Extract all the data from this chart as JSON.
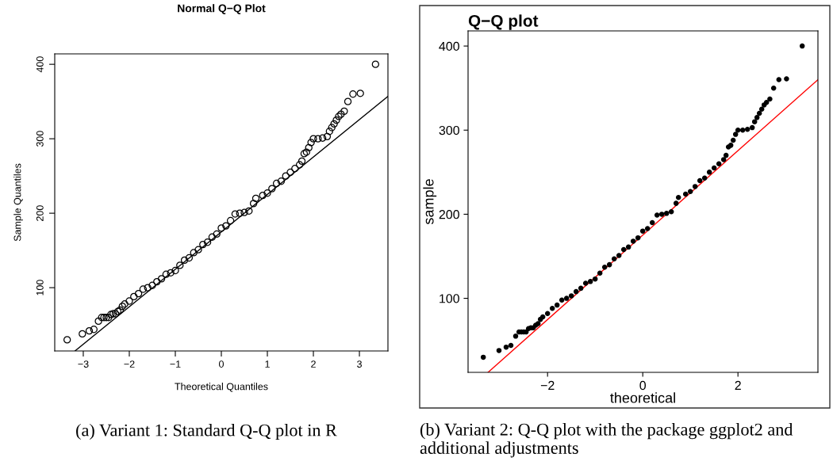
{
  "chart_data": [
    {
      "type": "scatter",
      "title": "Normal Q−Q Plot",
      "xlabel": "Theoretical Quantiles",
      "ylabel": "Sample Quantiles",
      "xlim": [
        -3.62,
        3.62
      ],
      "ylim": [
        15,
        414
      ],
      "xticks": [
        {
          "value": -3,
          "label": "−3"
        },
        {
          "value": -2,
          "label": "−2"
        },
        {
          "value": -1,
          "label": "−1"
        },
        0,
        1,
        2,
        3
      ],
      "yticks": [
        100,
        200,
        300,
        400
      ],
      "grid": false,
      "legend": false,
      "annotations": [
        "(a) Variant 1: Standard Q-Q plot in R"
      ],
      "series": [
        {
          "marker": "circle",
          "color": "#000000",
          "x": [
            -3.35,
            -3.02,
            -2.87,
            -2.77,
            -2.67,
            -2.6,
            -2.55,
            -2.5,
            -2.45,
            -2.4,
            -2.35,
            -2.3,
            -2.25,
            -2.2,
            -2.15,
            -2.1,
            -2.0,
            -1.9,
            -1.8,
            -1.7,
            -1.6,
            -1.5,
            -1.4,
            -1.3,
            -1.2,
            -1.1,
            -1.0,
            -0.9,
            -0.8,
            -0.7,
            -0.6,
            -0.5,
            -0.4,
            -0.3,
            -0.2,
            -0.1,
            0.0,
            0.1,
            0.2,
            0.3,
            0.4,
            0.5,
            0.6,
            0.7,
            0.75,
            0.9,
            1.0,
            1.1,
            1.2,
            1.3,
            1.4,
            1.5,
            1.6,
            1.7,
            1.75,
            1.8,
            1.85,
            1.9,
            1.95,
            2.0,
            2.1,
            2.2,
            2.3,
            2.35,
            2.4,
            2.45,
            2.5,
            2.55,
            2.6,
            2.67,
            2.75,
            2.86,
            3.02,
            3.35
          ],
          "values": [
            30,
            38,
            42,
            44,
            55,
            60,
            60,
            60,
            60,
            64,
            65,
            65,
            68,
            70,
            75,
            78,
            82,
            88,
            92,
            98,
            100,
            103,
            108,
            112,
            118,
            120,
            123,
            130,
            137,
            140,
            147,
            151,
            158,
            161,
            168,
            172,
            180,
            183,
            190,
            199,
            200,
            201,
            203,
            213,
            220,
            224,
            227,
            233,
            240,
            243,
            250,
            255,
            260,
            265,
            270,
            280,
            282,
            288,
            295,
            300,
            300,
            301,
            303,
            310,
            315,
            320,
            325,
            330,
            333,
            337,
            350,
            360,
            361,
            400
          ]
        },
        {
          "type": "line",
          "color": "#000000",
          "x": [
            -3.18,
            3.62
          ],
          "values": [
            15,
            357
          ]
        }
      ]
    },
    {
      "type": "scatter",
      "title": "Q−Q plot",
      "xlabel": "theoretical",
      "ylabel": "sample",
      "xlim": [
        -3.67,
        3.68
      ],
      "ylim": [
        12,
        418
      ],
      "xticks": [
        {
          "value": -2,
          "label": "−2"
        },
        0,
        2
      ],
      "yticks": [
        100,
        200,
        300,
        400
      ],
      "grid": false,
      "legend": false,
      "annotations": [
        "(b) Variant 2: Q-Q plot with the package ggplot2 and additional adjustments"
      ],
      "series": [
        {
          "marker": "circle",
          "color": "#000000",
          "x": [
            -3.35,
            -3.02,
            -2.87,
            -2.77,
            -2.67,
            -2.6,
            -2.55,
            -2.5,
            -2.45,
            -2.4,
            -2.35,
            -2.3,
            -2.25,
            -2.2,
            -2.15,
            -2.1,
            -2.0,
            -1.9,
            -1.8,
            -1.7,
            -1.6,
            -1.5,
            -1.4,
            -1.3,
            -1.2,
            -1.1,
            -1.0,
            -0.9,
            -0.8,
            -0.7,
            -0.6,
            -0.5,
            -0.4,
            -0.3,
            -0.2,
            -0.1,
            0.0,
            0.1,
            0.2,
            0.3,
            0.4,
            0.5,
            0.6,
            0.7,
            0.75,
            0.9,
            1.0,
            1.1,
            1.2,
            1.3,
            1.4,
            1.5,
            1.6,
            1.7,
            1.75,
            1.8,
            1.85,
            1.9,
            1.95,
            2.0,
            2.1,
            2.2,
            2.3,
            2.35,
            2.4,
            2.45,
            2.5,
            2.55,
            2.6,
            2.67,
            2.75,
            2.86,
            3.02,
            3.35
          ],
          "values": [
            30,
            38,
            42,
            44,
            55,
            60,
            60,
            60,
            60,
            64,
            65,
            65,
            68,
            70,
            75,
            78,
            82,
            88,
            92,
            98,
            100,
            103,
            108,
            112,
            118,
            120,
            123,
            130,
            137,
            140,
            147,
            151,
            158,
            161,
            168,
            172,
            180,
            183,
            190,
            199,
            200,
            201,
            203,
            213,
            220,
            224,
            227,
            233,
            240,
            243,
            250,
            255,
            260,
            265,
            270,
            280,
            282,
            288,
            295,
            300,
            300,
            301,
            303,
            310,
            315,
            320,
            325,
            330,
            333,
            337,
            350,
            360,
            361,
            400
          ]
        },
        {
          "type": "line",
          "color": "#ff0000",
          "x": [
            -3.25,
            3.68
          ],
          "values": [
            12,
            360
          ]
        }
      ]
    }
  ]
}
